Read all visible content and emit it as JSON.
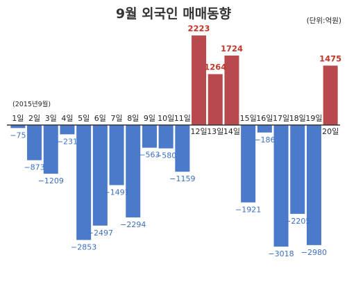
{
  "chart_data": {
    "type": "bar",
    "title": "9월 외국인 매매동향",
    "unit_note": "(단위:억원)",
    "period_note": "(2015년9월)",
    "categories": [
      "1일",
      "2일",
      "3일",
      "4일",
      "5일",
      "6일",
      "7일",
      "8일",
      "9일",
      "10일",
      "11일",
      "12일",
      "13일",
      "14일",
      "15일",
      "16일",
      "17일",
      "18일",
      "19일",
      "20일"
    ],
    "values": [
      -75,
      -873,
      -1209,
      -231,
      -2853,
      -2497,
      -1491,
      -2294,
      -563,
      -580,
      -1159,
      2223,
      1264,
      1724,
      -1921,
      -186,
      -3018,
      -2205,
      -2980,
      1475
    ],
    "value_labels": [
      "−75",
      "−873",
      "−1209",
      "−231",
      "−2853",
      "−2497",
      "−1491",
      "−2294",
      "−563",
      "−580",
      "−1159",
      "2223",
      "1264",
      "1724",
      "−1921",
      "−186",
      "−3018",
      "−2205",
      "−2980",
      "1475"
    ],
    "ylim": [
      -3400,
      2300
    ],
    "grid": false,
    "colors": {
      "positive": "#b84a4e",
      "negative": "#4a7ac9",
      "positive_label": "#c0392b",
      "negative_label": "#3a6fc4",
      "baseline": "#333333"
    }
  }
}
